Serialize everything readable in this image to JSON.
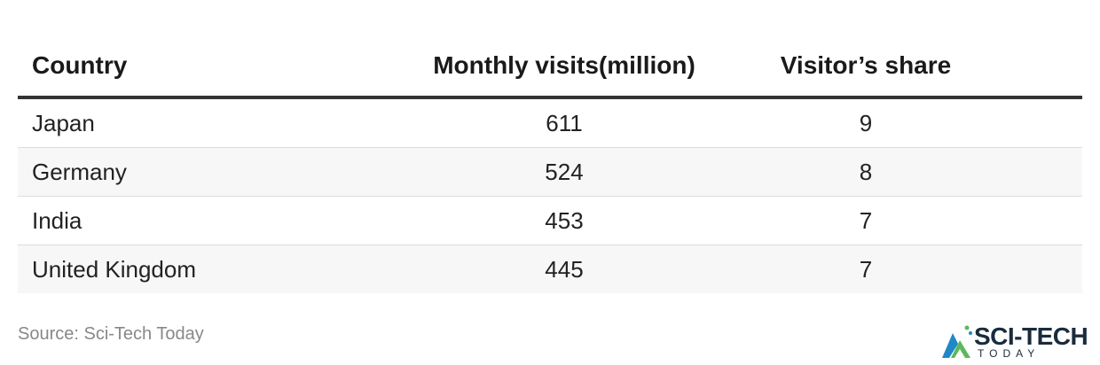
{
  "chart_data": {
    "type": "table",
    "columns": [
      "Country",
      "Monthly visits(million)",
      "Visitor’s share"
    ],
    "rows": [
      [
        "Japan",
        "611",
        "9"
      ],
      [
        "Germany",
        "524",
        "8"
      ],
      [
        "India",
        "453",
        "7"
      ],
      [
        "United Kingdom",
        "445",
        "7"
      ]
    ]
  },
  "source": "Source: Sci-Tech Today",
  "logo": {
    "name": "SCI-TECH",
    "sub": "TODAY"
  },
  "colors": {
    "header_rule": "#333333",
    "alt_row": "#f7f7f7",
    "source_text": "#888888",
    "logo_green": "#5cb85c",
    "logo_blue": "#1e88c8"
  }
}
